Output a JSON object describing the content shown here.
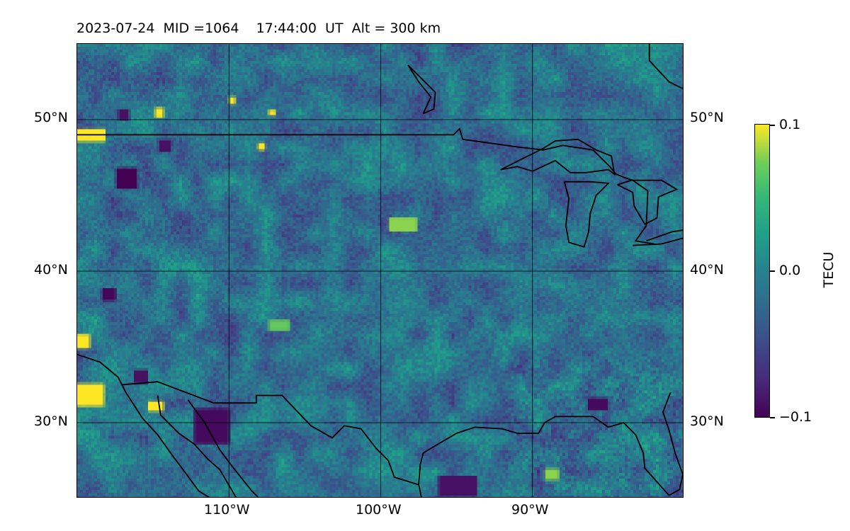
{
  "title": "2023-07-24  MID =1064    17:44:00  UT  Alt = 300 km",
  "map": {
    "projection": "PlateCarree",
    "extent": {
      "lon_min": -120,
      "lon_max": -80,
      "lat_min": 25,
      "lat_max": 55
    },
    "gridlines": true,
    "lat_ticks": [
      {
        "value": 50,
        "left_label": "50°N",
        "right_label": "50°N"
      },
      {
        "value": 40,
        "left_label": "40°N",
        "right_label": "40°N"
      },
      {
        "value": 30,
        "left_label": "30°N",
        "right_label": "30°N"
      }
    ],
    "lon_ticks": [
      {
        "value": -110,
        "label": "110°W"
      },
      {
        "value": -100,
        "label": "100°W"
      },
      {
        "value": -90,
        "label": "90°W"
      }
    ],
    "features": [
      "coastlines",
      "country-borders",
      "great-lakes"
    ]
  },
  "colorbar": {
    "colormap": "viridis",
    "min": -0.1,
    "max": 0.1,
    "min_label": "−0.1",
    "mid_label": "0.0",
    "max_label": "0.1",
    "unit": "TECU"
  }
}
